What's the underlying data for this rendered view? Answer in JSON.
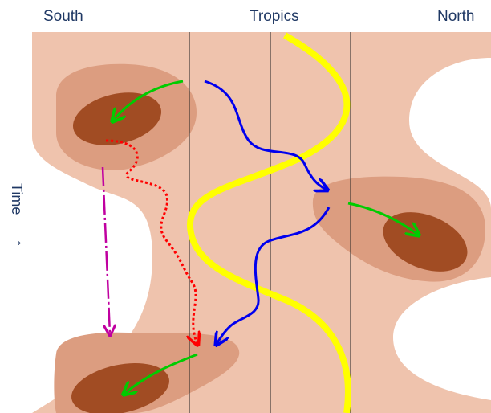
{
  "labels": {
    "south": "South",
    "tropics": "Tropics",
    "north": "North",
    "time": "Time",
    "time_arrow": "→"
  },
  "colors": {
    "background_band": "#efc3ad",
    "middle_contour": "#dc9d80",
    "core_contour": "#a14c23",
    "tropics_line": "#ffff00",
    "green_arrow": "#00cc00",
    "blue_arrow": "#0000ee",
    "red_dotted_arrow": "#ff0000",
    "magenta_dashed_arrow": "#c000a0",
    "vertical_lines": "#222222",
    "text": "#1f3864"
  },
  "icons": {
    "time_arrow": "right-arrow-glyph"
  }
}
